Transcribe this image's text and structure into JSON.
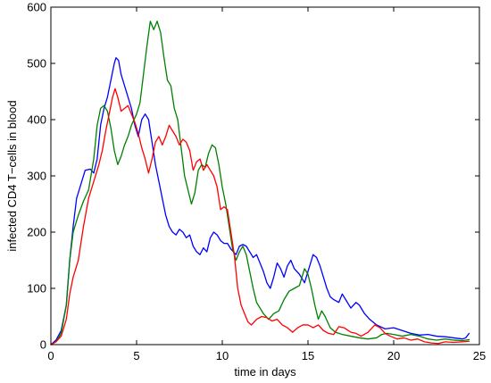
{
  "chart_data": {
    "type": "line",
    "title": "",
    "xlabel": "time in days",
    "ylabel": "infected CD4 T−cells in blood",
    "xlim": [
      0,
      25
    ],
    "ylim": [
      0,
      600
    ],
    "xticks": [
      0,
      5,
      10,
      15,
      20,
      25
    ],
    "yticks": [
      0,
      100,
      200,
      300,
      400,
      500,
      600
    ],
    "grid": false,
    "legend": "none",
    "series": [
      {
        "color": "#0000ff",
        "points": [
          [
            0,
            0
          ],
          [
            0.3,
            8
          ],
          [
            0.6,
            25
          ],
          [
            0.9,
            70
          ],
          [
            1.1,
            150
          ],
          [
            1.3,
            210
          ],
          [
            1.5,
            260
          ],
          [
            1.8,
            290
          ],
          [
            2.0,
            310
          ],
          [
            2.3,
            312
          ],
          [
            2.5,
            305
          ],
          [
            2.7,
            330
          ],
          [
            2.9,
            390
          ],
          [
            3.1,
            420
          ],
          [
            3.3,
            440
          ],
          [
            3.5,
            470
          ],
          [
            3.7,
            500
          ],
          [
            3.8,
            510
          ],
          [
            3.95,
            505
          ],
          [
            4.1,
            480
          ],
          [
            4.3,
            460
          ],
          [
            4.5,
            440
          ],
          [
            4.7,
            420
          ],
          [
            4.9,
            390
          ],
          [
            5.0,
            380
          ],
          [
            5.1,
            370
          ],
          [
            5.3,
            400
          ],
          [
            5.5,
            410
          ],
          [
            5.7,
            400
          ],
          [
            5.9,
            360
          ],
          [
            6.1,
            320
          ],
          [
            6.3,
            290
          ],
          [
            6.5,
            260
          ],
          [
            6.7,
            230
          ],
          [
            6.9,
            210
          ],
          [
            7.1,
            200
          ],
          [
            7.3,
            195
          ],
          [
            7.5,
            205
          ],
          [
            7.7,
            200
          ],
          [
            7.9,
            190
          ],
          [
            8.1,
            195
          ],
          [
            8.3,
            175
          ],
          [
            8.5,
            165
          ],
          [
            8.7,
            160
          ],
          [
            8.9,
            172
          ],
          [
            9.1,
            165
          ],
          [
            9.3,
            190
          ],
          [
            9.5,
            200
          ],
          [
            9.7,
            195
          ],
          [
            9.9,
            185
          ],
          [
            10.1,
            180
          ],
          [
            10.3,
            180
          ],
          [
            10.5,
            170
          ],
          [
            10.8,
            160
          ],
          [
            11.0,
            175
          ],
          [
            11.2,
            178
          ],
          [
            11.4,
            175
          ],
          [
            11.6,
            165
          ],
          [
            11.8,
            155
          ],
          [
            12.0,
            160
          ],
          [
            12.2,
            145
          ],
          [
            12.4,
            130
          ],
          [
            12.6,
            110
          ],
          [
            12.8,
            100
          ],
          [
            13.0,
            120
          ],
          [
            13.2,
            145
          ],
          [
            13.4,
            135
          ],
          [
            13.6,
            120
          ],
          [
            13.8,
            140
          ],
          [
            14.0,
            150
          ],
          [
            14.2,
            135
          ],
          [
            14.5,
            125
          ],
          [
            14.8,
            110
          ],
          [
            15.0,
            130
          ],
          [
            15.3,
            160
          ],
          [
            15.5,
            155
          ],
          [
            15.7,
            140
          ],
          [
            15.9,
            120
          ],
          [
            16.1,
            100
          ],
          [
            16.3,
            85
          ],
          [
            16.5,
            80
          ],
          [
            16.8,
            75
          ],
          [
            17.0,
            90
          ],
          [
            17.2,
            80
          ],
          [
            17.5,
            65
          ],
          [
            17.8,
            75
          ],
          [
            18.0,
            70
          ],
          [
            18.3,
            55
          ],
          [
            18.6,
            45
          ],
          [
            19.0,
            35
          ],
          [
            19.5,
            28
          ],
          [
            20.0,
            30
          ],
          [
            20.5,
            25
          ],
          [
            21.0,
            20
          ],
          [
            21.5,
            17
          ],
          [
            22.0,
            18
          ],
          [
            22.5,
            15
          ],
          [
            23.0,
            14
          ],
          [
            23.5,
            12
          ],
          [
            24.0,
            10
          ],
          [
            24.2,
            12
          ],
          [
            24.4,
            20
          ]
        ]
      },
      {
        "color": "#008000",
        "points": [
          [
            0,
            0
          ],
          [
            0.3,
            5
          ],
          [
            0.6,
            20
          ],
          [
            0.9,
            70
          ],
          [
            1.1,
            150
          ],
          [
            1.3,
            200
          ],
          [
            1.6,
            230
          ],
          [
            1.9,
            255
          ],
          [
            2.2,
            275
          ],
          [
            2.5,
            330
          ],
          [
            2.7,
            390
          ],
          [
            2.9,
            420
          ],
          [
            3.1,
            425
          ],
          [
            3.3,
            415
          ],
          [
            3.5,
            385
          ],
          [
            3.7,
            345
          ],
          [
            3.9,
            320
          ],
          [
            4.1,
            335
          ],
          [
            4.3,
            355
          ],
          [
            4.5,
            370
          ],
          [
            4.7,
            390
          ],
          [
            5.0,
            410
          ],
          [
            5.2,
            430
          ],
          [
            5.4,
            480
          ],
          [
            5.6,
            530
          ],
          [
            5.8,
            575
          ],
          [
            6.0,
            560
          ],
          [
            6.2,
            575
          ],
          [
            6.4,
            555
          ],
          [
            6.6,
            510
          ],
          [
            6.8,
            470
          ],
          [
            7.0,
            460
          ],
          [
            7.2,
            420
          ],
          [
            7.4,
            400
          ],
          [
            7.6,
            350
          ],
          [
            7.8,
            300
          ],
          [
            8.0,
            275
          ],
          [
            8.2,
            250
          ],
          [
            8.4,
            270
          ],
          [
            8.6,
            310
          ],
          [
            8.8,
            320
          ],
          [
            9.0,
            315
          ],
          [
            9.2,
            340
          ],
          [
            9.4,
            355
          ],
          [
            9.6,
            350
          ],
          [
            9.8,
            320
          ],
          [
            10.0,
            280
          ],
          [
            10.2,
            250
          ],
          [
            10.4,
            210
          ],
          [
            10.6,
            170
          ],
          [
            10.8,
            150
          ],
          [
            11.0,
            165
          ],
          [
            11.2,
            175
          ],
          [
            11.4,
            160
          ],
          [
            11.6,
            130
          ],
          [
            11.8,
            100
          ],
          [
            12.0,
            75
          ],
          [
            12.2,
            65
          ],
          [
            12.4,
            55
          ],
          [
            12.7,
            45
          ],
          [
            13.0,
            55
          ],
          [
            13.3,
            60
          ],
          [
            13.6,
            80
          ],
          [
            13.9,
            95
          ],
          [
            14.2,
            100
          ],
          [
            14.5,
            105
          ],
          [
            14.8,
            135
          ],
          [
            15.0,
            125
          ],
          [
            15.2,
            100
          ],
          [
            15.4,
            70
          ],
          [
            15.6,
            45
          ],
          [
            15.8,
            60
          ],
          [
            16.0,
            50
          ],
          [
            16.3,
            30
          ],
          [
            16.6,
            22
          ],
          [
            17.0,
            18
          ],
          [
            17.5,
            15
          ],
          [
            18.0,
            12
          ],
          [
            18.5,
            10
          ],
          [
            19.0,
            12
          ],
          [
            19.3,
            18
          ],
          [
            19.6,
            20
          ],
          [
            20.0,
            18
          ],
          [
            20.5,
            15
          ],
          [
            21.0,
            18
          ],
          [
            21.5,
            15
          ],
          [
            22.0,
            10
          ],
          [
            22.5,
            8
          ],
          [
            23.0,
            10
          ],
          [
            23.5,
            8
          ],
          [
            24.0,
            7
          ],
          [
            24.4,
            9
          ]
        ]
      },
      {
        "color": "#ff0000",
        "points": [
          [
            0,
            0
          ],
          [
            0.3,
            5
          ],
          [
            0.6,
            15
          ],
          [
            0.9,
            45
          ],
          [
            1.1,
            90
          ],
          [
            1.3,
            120
          ],
          [
            1.6,
            150
          ],
          [
            1.9,
            210
          ],
          [
            2.2,
            260
          ],
          [
            2.5,
            290
          ],
          [
            2.8,
            320
          ],
          [
            3.0,
            345
          ],
          [
            3.2,
            380
          ],
          [
            3.4,
            410
          ],
          [
            3.6,
            440
          ],
          [
            3.75,
            455
          ],
          [
            3.9,
            440
          ],
          [
            4.1,
            415
          ],
          [
            4.3,
            420
          ],
          [
            4.5,
            425
          ],
          [
            4.7,
            410
          ],
          [
            4.9,
            395
          ],
          [
            5.1,
            375
          ],
          [
            5.3,
            350
          ],
          [
            5.5,
            330
          ],
          [
            5.7,
            305
          ],
          [
            5.9,
            330
          ],
          [
            6.1,
            360
          ],
          [
            6.3,
            370
          ],
          [
            6.5,
            355
          ],
          [
            6.7,
            370
          ],
          [
            6.9,
            390
          ],
          [
            7.1,
            380
          ],
          [
            7.3,
            370
          ],
          [
            7.5,
            355
          ],
          [
            7.7,
            365
          ],
          [
            7.9,
            360
          ],
          [
            8.1,
            345
          ],
          [
            8.3,
            310
          ],
          [
            8.5,
            325
          ],
          [
            8.7,
            330
          ],
          [
            8.9,
            310
          ],
          [
            9.1,
            320
          ],
          [
            9.3,
            310
          ],
          [
            9.5,
            300
          ],
          [
            9.7,
            280
          ],
          [
            9.9,
            240
          ],
          [
            10.1,
            245
          ],
          [
            10.3,
            240
          ],
          [
            10.5,
            200
          ],
          [
            10.7,
            160
          ],
          [
            10.9,
            100
          ],
          [
            11.1,
            70
          ],
          [
            11.3,
            55
          ],
          [
            11.5,
            40
          ],
          [
            11.7,
            35
          ],
          [
            12.0,
            45
          ],
          [
            12.3,
            50
          ],
          [
            12.6,
            48
          ],
          [
            12.9,
            42
          ],
          [
            13.2,
            45
          ],
          [
            13.5,
            35
          ],
          [
            13.8,
            30
          ],
          [
            14.1,
            22
          ],
          [
            14.4,
            30
          ],
          [
            14.7,
            35
          ],
          [
            15.0,
            35
          ],
          [
            15.3,
            30
          ],
          [
            15.6,
            35
          ],
          [
            15.9,
            25
          ],
          [
            16.2,
            20
          ],
          [
            16.5,
            18
          ],
          [
            16.8,
            32
          ],
          [
            17.1,
            30
          ],
          [
            17.5,
            22
          ],
          [
            17.8,
            20
          ],
          [
            18.1,
            15
          ],
          [
            18.5,
            22
          ],
          [
            18.9,
            35
          ],
          [
            19.2,
            30
          ],
          [
            19.5,
            20
          ],
          [
            19.8,
            15
          ],
          [
            20.2,
            10
          ],
          [
            20.6,
            12
          ],
          [
            21.0,
            8
          ],
          [
            21.4,
            10
          ],
          [
            21.8,
            5
          ],
          [
            22.2,
            3
          ],
          [
            22.6,
            2
          ],
          [
            23.0,
            5
          ],
          [
            23.5,
            4
          ],
          [
            24.0,
            5
          ],
          [
            24.4,
            6
          ]
        ]
      }
    ]
  }
}
